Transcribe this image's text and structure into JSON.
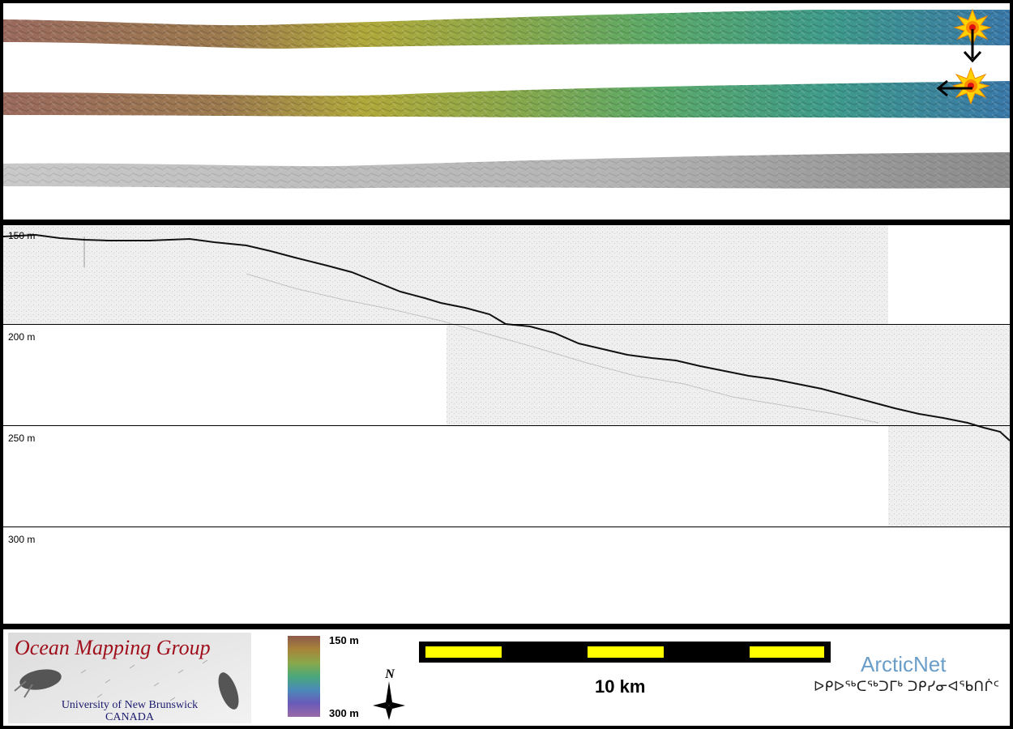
{
  "swath_panel": {
    "strips": [
      "bathymetry-strip",
      "bathymetry-strip",
      "backscatter-strip"
    ],
    "markers": [
      "sun-icon",
      "sun-icon"
    ],
    "arrows": [
      "arrow-down-icon",
      "arrow-left-icon"
    ]
  },
  "profile_panel": {
    "depth_labels": [
      "150 m",
      "200 m",
      "250 m",
      "300 m"
    ]
  },
  "footer": {
    "ocean_mapping_title": "Ocean Mapping Group",
    "university": "University of New Brunswick",
    "country": "CANADA",
    "colorbar": {
      "top_label": "150 m",
      "bottom_label": "300 m",
      "colors": [
        "#8b5a4a",
        "#a8843a",
        "#8aa84a",
        "#4aa87a",
        "#4a8ab8",
        "#6a5ab8",
        "#9a6aa8"
      ]
    },
    "north_label": "N",
    "scale_label": "10 km",
    "arcticnet": "ArcticNet",
    "inuktitut": "ᐅᑭᐅᖅᑕᖅᑐᒥᒃ ᑐᑭᓯᓂᐊᖃᑎᒌᑦ"
  },
  "colors": {
    "bathy_shallow": "#9a6a5a",
    "bathy_mid": "#a8a03a",
    "bathy_deep": "#3a8ab0",
    "scale_yellow": "#ffff00"
  }
}
